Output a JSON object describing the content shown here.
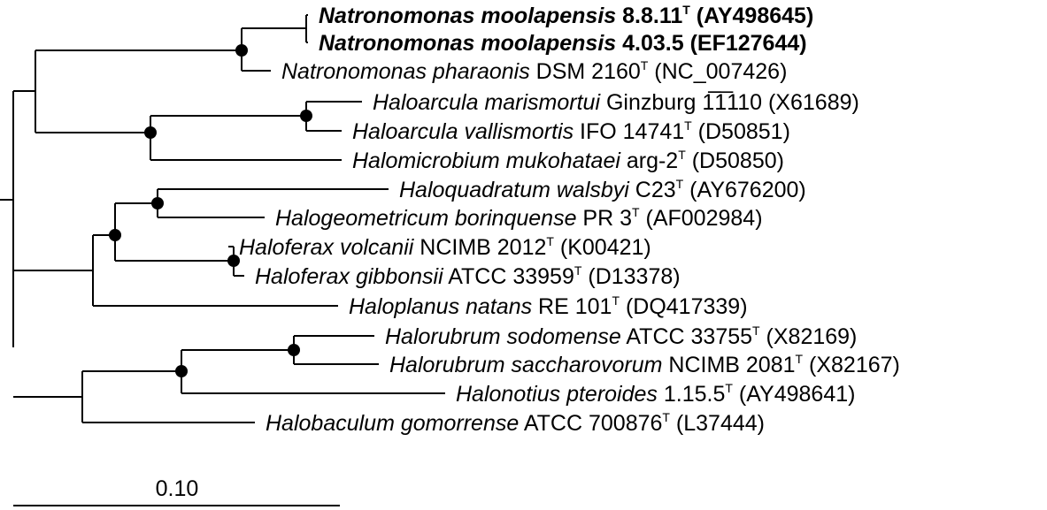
{
  "taxa": [
    {
      "italic": "Natronomonas moolapensis",
      "strain": " 8.8.11",
      "type_strain": true,
      "accession": " (AY498645)",
      "bold": true
    },
    {
      "italic": "Natronomonas moolapensis",
      "strain": " 4.03.5",
      "type_strain": false,
      "accession": " (EF127644)",
      "bold": true
    },
    {
      "italic": "Natronomonas pharaonis",
      "strain": " DSM 2160",
      "type_strain": true,
      "accession": " (NC_007426)",
      "bold": false
    },
    {
      "italic": "Haloarcula marismortui",
      "strain": " Ginzburg 1̅̅1̅110",
      "type_strain": false,
      "accession": " (X61689)",
      "bold": false
    },
    {
      "italic": "Haloarcula vallismortis",
      "strain": " IFO 14741",
      "type_strain": true,
      "accession": " (D50851)",
      "bold": false
    },
    {
      "italic": "Halomicrobium mukohataei",
      "strain": " arg-2",
      "type_strain": true,
      "accession": " (D50850)",
      "bold": false
    },
    {
      "italic": "Haloquadratum walsbyi",
      "strain": " C23",
      "type_strain": true,
      "accession": " (AY676200)",
      "bold": false
    },
    {
      "italic": "Halogeometricum borinquense",
      "strain": " PR 3",
      "type_strain": true,
      "accession": " (AF002984)",
      "bold": false
    },
    {
      "italic": "Haloferax volcanii",
      "strain": " NCIMB 2012",
      "type_strain": true,
      "accession": " (K00421)",
      "bold": false
    },
    {
      "italic": "Haloferax gibbonsii",
      "strain": " ATCC 33959",
      "type_strain": true,
      "accession": " (D13378)",
      "bold": false
    },
    {
      "italic": "Haloplanus natans",
      "strain": " RE 101",
      "type_strain": true,
      "accession": " (DQ417339)",
      "bold": false
    },
    {
      "italic": "Halorubrum sodomense",
      "strain": " ATCC 33755",
      "type_strain": true,
      "accession": " (X82169)",
      "bold": false
    },
    {
      "italic": "Halorubrum saccharovorum",
      "strain": " NCIMB 2081",
      "type_strain": true,
      "accession": " (X82167)",
      "bold": false
    },
    {
      "italic": "Halonotius pteroides",
      "strain": " 1.15.5",
      "type_strain": true,
      "accession": " (AY498641)",
      "bold": false
    },
    {
      "italic": "Halobaculum gomorrense",
      "strain": " ATCC 700876",
      "type_strain": true,
      "accession": " (L37444)",
      "bold": false
    }
  ],
  "type_strain_marker": "T",
  "scale_bar": {
    "label": "0.10"
  }
}
